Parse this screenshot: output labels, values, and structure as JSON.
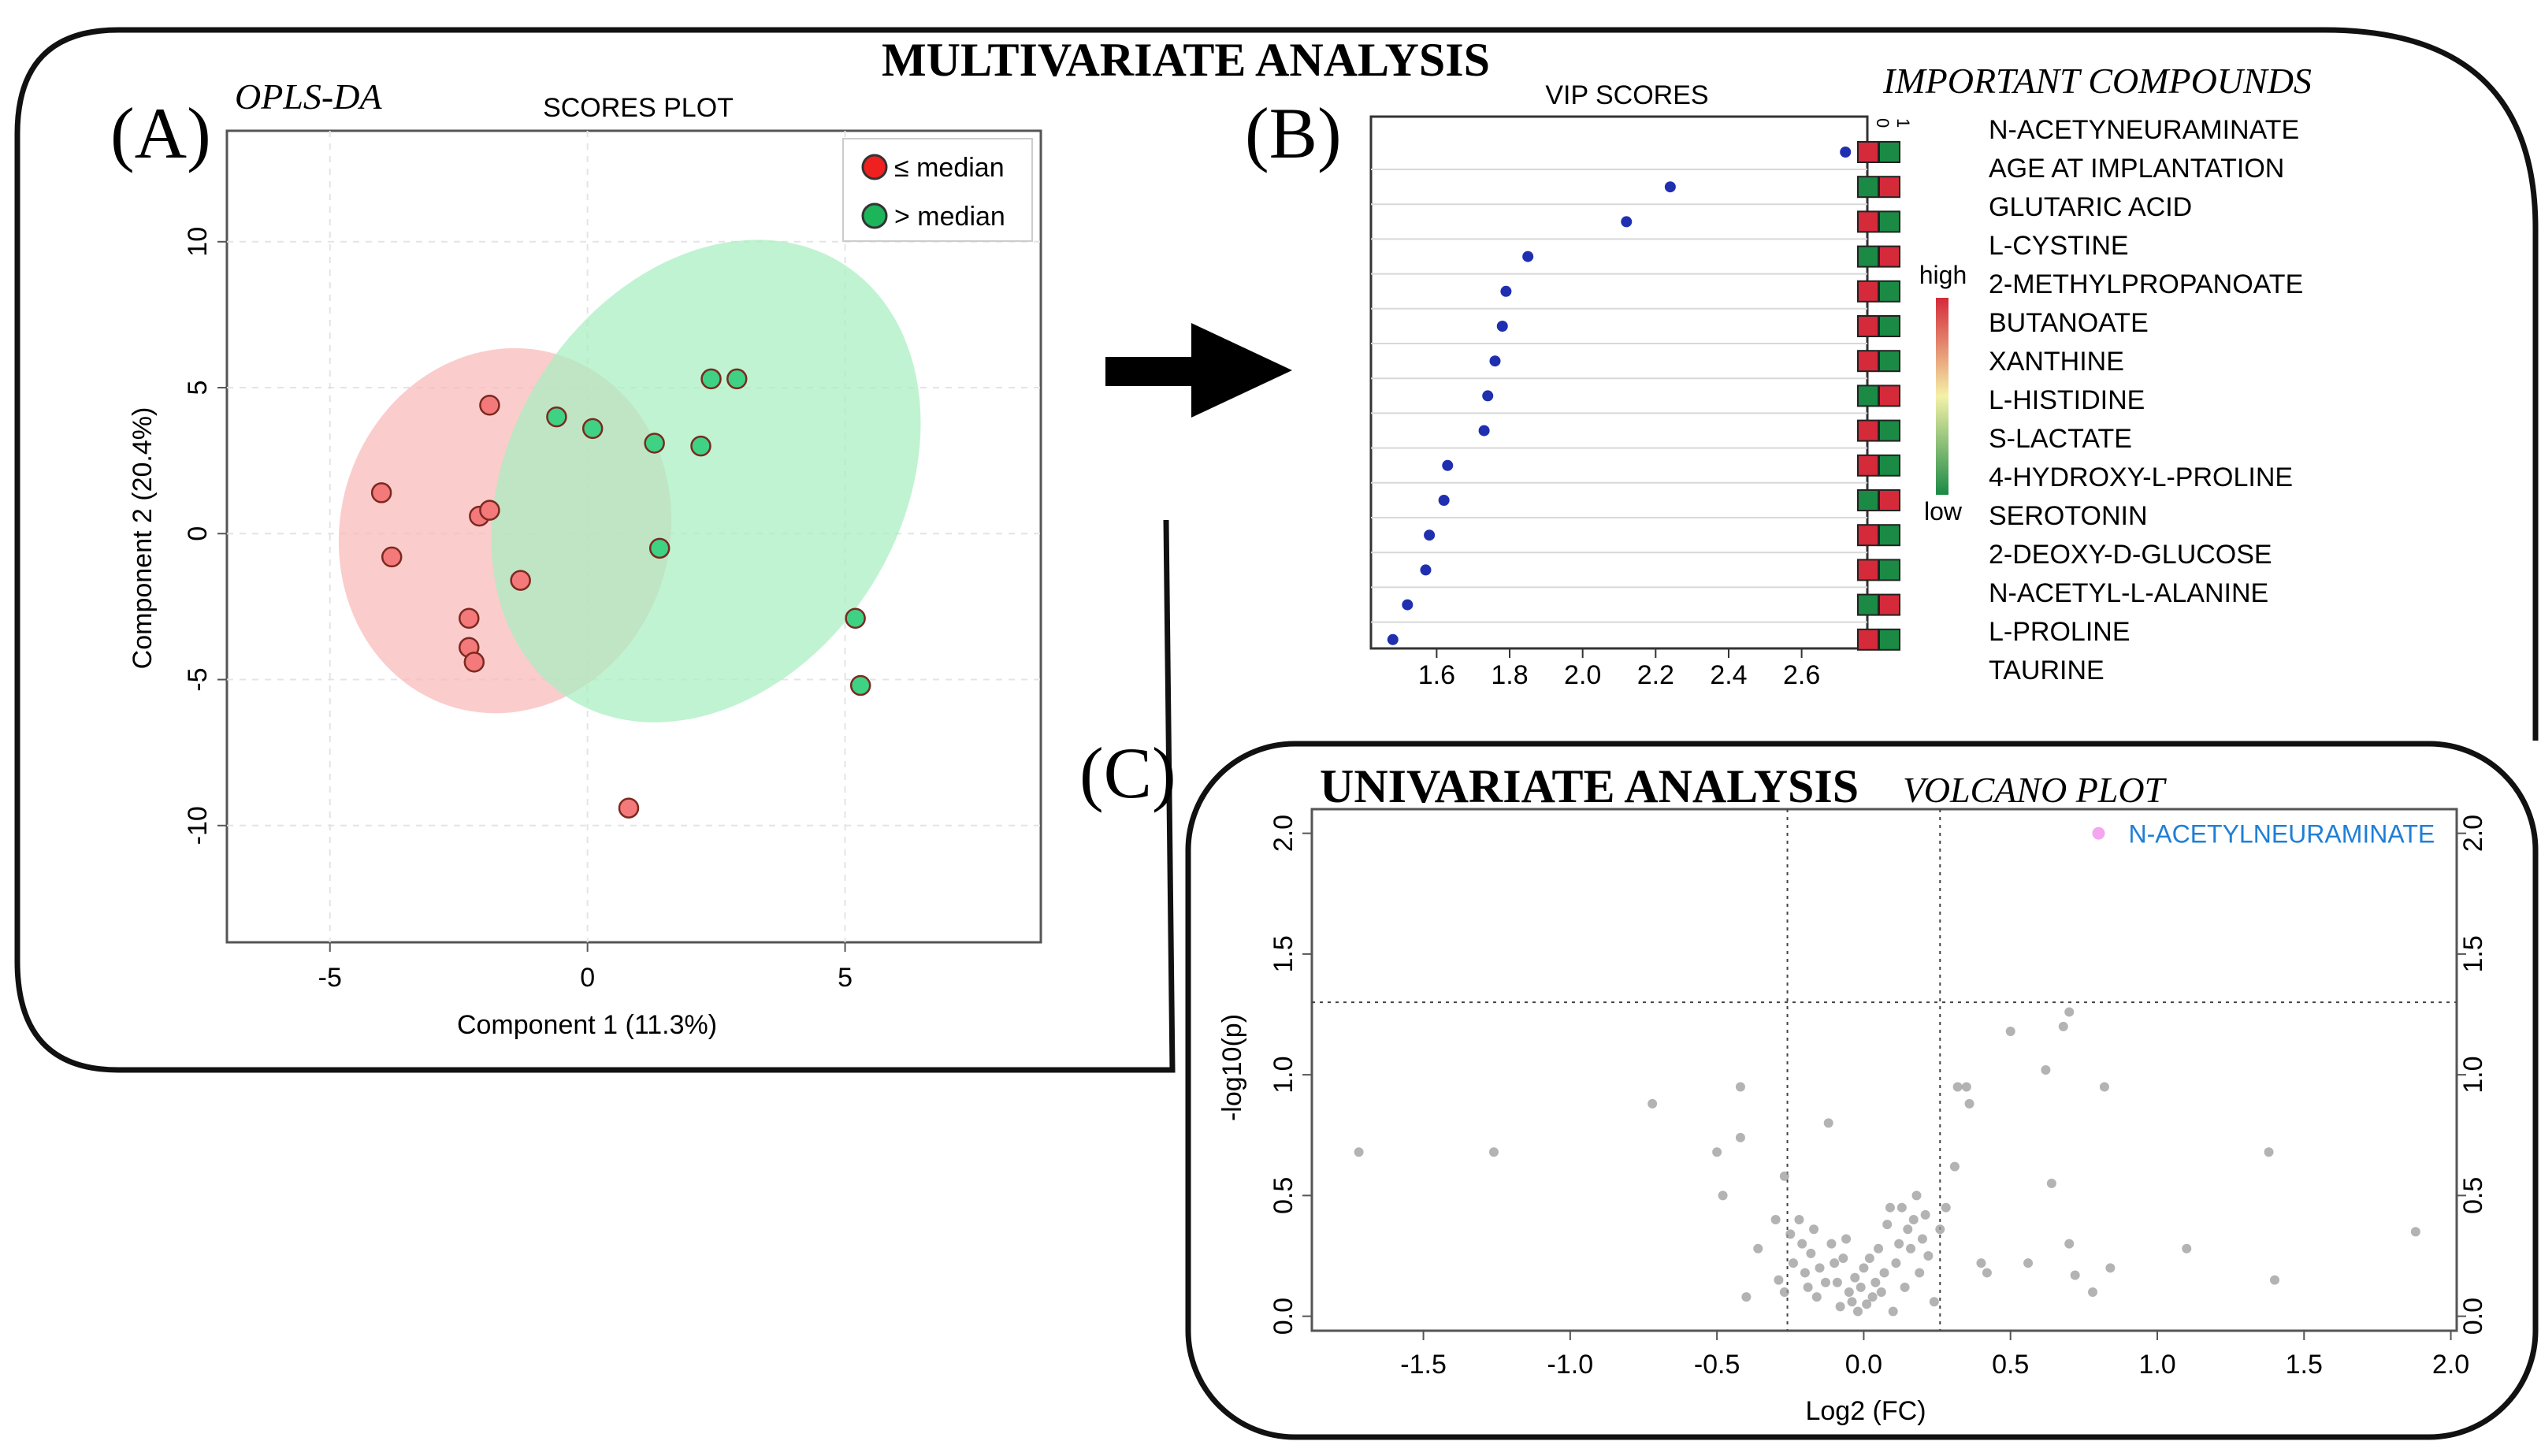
{
  "colors": {
    "red_fill": "#f4797a",
    "red_ellipse": "#f9b9b9",
    "green_fill": "#3fd184",
    "green_ellipse": "#a7efc0",
    "marker_edge": "#7a2a20",
    "vip_dot": "#1f2fb0",
    "heat_red": "#d42a3a",
    "heat_green": "#1a8a45",
    "volcano_dot": "#9a9a9a",
    "highlight_dot": "#f4a6f0",
    "highlight_label": "#1f7fd6",
    "frame": "#111111"
  },
  "headings": {
    "multivariate": "MULTIVARIATE ANALYSIS",
    "univariate": "UNIVARIATE ANALYSIS",
    "volcano": "VOLCANO PLOT",
    "important": "IMPORTANT COMPOUNDS",
    "opls": "OPLS-DA",
    "panel_a": "(A)",
    "panel_b": "(B)",
    "panel_c": "(C)"
  },
  "chart_data": [
    {
      "id": "scores",
      "type": "scatter",
      "title": "SCORES PLOT",
      "xlabel": "Component 1 (11.3%)",
      "ylabel": "Component 2 (20.4%)",
      "xlim": [
        -7,
        8.8
      ],
      "ylim": [
        -14,
        13.8
      ],
      "xticks": [
        -5,
        0,
        5
      ],
      "yticks": [
        -10,
        -5,
        0,
        5,
        10
      ],
      "grid": true,
      "legend": [
        "≤ median",
        "> median"
      ],
      "series": [
        {
          "name": "≤ median",
          "color": "red",
          "ellipse": {
            "cx": -1.6,
            "cy": 0.1,
            "rx": 6.3,
            "ry": 3.2,
            "angle_deg": -74
          },
          "points": [
            [
              -4.0,
              1.4
            ],
            [
              -3.8,
              -0.8
            ],
            [
              -2.3,
              -2.9
            ],
            [
              -2.3,
              -3.9
            ],
            [
              -2.2,
              -4.4
            ],
            [
              -2.1,
              0.6
            ],
            [
              -1.9,
              0.8
            ],
            [
              -1.9,
              4.4
            ],
            [
              -1.3,
              -1.6
            ],
            [
              0.8,
              -9.4
            ]
          ]
        },
        {
          "name": "> median",
          "color": "green",
          "ellipse": {
            "cx": 2.3,
            "cy": 1.8,
            "rx": 8.8,
            "ry": 3.8,
            "angle_deg": -58
          },
          "points": [
            [
              -0.6,
              4.0
            ],
            [
              0.1,
              3.6
            ],
            [
              1.3,
              3.1
            ],
            [
              1.4,
              -0.5
            ],
            [
              2.2,
              3.0
            ],
            [
              2.4,
              5.3
            ],
            [
              2.9,
              5.3
            ],
            [
              5.2,
              -2.9
            ],
            [
              5.3,
              -5.2
            ]
          ]
        }
      ]
    },
    {
      "id": "vip",
      "type": "scatter",
      "title": "VIP SCORES",
      "xlim": [
        1.42,
        2.78
      ],
      "xticks": [
        1.6,
        1.8,
        2.0,
        2.2,
        2.4,
        2.6
      ],
      "tick_labels": [
        "1.6",
        "1.8",
        "2.0",
        "2.2",
        "2.4",
        "2.6"
      ],
      "heat_header": [
        "0",
        "1"
      ],
      "colorbar": {
        "high": "high",
        "low": "low"
      },
      "compounds": [
        "N-ACETYNEURAMINATE",
        "AGE AT IMPLANTATION",
        "GLUTARIC ACID",
        "L-CYSTINE",
        "2-METHYLPROPANOATE",
        "BUTANOATE",
        "XANTHINE",
        "L-HISTIDINE",
        "S-LACTATE",
        "4-HYDROXY-L-PROLINE",
        "SEROTONIN",
        "2-DEOXY-D-GLUCOSE",
        "N-ACETYL-L-ALANINE",
        "L-PROLINE",
        "TAURINE"
      ],
      "values": [
        2.72,
        2.24,
        2.12,
        1.85,
        1.79,
        1.78,
        1.76,
        1.74,
        1.73,
        1.63,
        1.62,
        1.58,
        1.57,
        1.52,
        1.48
      ],
      "heat": [
        [
          "red",
          "green"
        ],
        [
          "green",
          "red"
        ],
        [
          "red",
          "green"
        ],
        [
          "green",
          "red"
        ],
        [
          "red",
          "green"
        ],
        [
          "red",
          "green"
        ],
        [
          "red",
          "green"
        ],
        [
          "green",
          "red"
        ],
        [
          "red",
          "green"
        ],
        [
          "red",
          "green"
        ],
        [
          "green",
          "red"
        ],
        [
          "red",
          "green"
        ],
        [
          "red",
          "green"
        ],
        [
          "green",
          "red"
        ],
        [
          "red",
          "green"
        ]
      ]
    },
    {
      "id": "volcano",
      "type": "scatter",
      "xlabel": "Log2 (FC)",
      "ylabel": "-log10(p)",
      "xlim": [
        -1.88,
        2.02
      ],
      "ylim": [
        -0.06,
        2.1
      ],
      "xticks": [
        -1.5,
        -1.0,
        -0.5,
        0.0,
        0.5,
        1.0,
        1.5,
        2.0
      ],
      "x_tick_labels": [
        "-1.5",
        "-1.0",
        "-0.5",
        "0.0",
        "0.5",
        "1.0",
        "1.5",
        "2.0"
      ],
      "yticks": [
        0.0,
        0.5,
        1.0,
        1.5,
        2.0
      ],
      "y_tick_labels": [
        "0.0",
        "0.5",
        "1.0",
        "1.5",
        "2.0"
      ],
      "thresholds": {
        "x": [
          -0.26,
          0.26
        ],
        "y": 1.3
      },
      "highlight": {
        "label": "N-ACETYLNEURAMINATE",
        "x": 0.8,
        "y": 2.0
      },
      "points": [
        [
          -1.72,
          0.68
        ],
        [
          -1.26,
          0.68
        ],
        [
          -0.72,
          0.88
        ],
        [
          -0.5,
          0.68
        ],
        [
          -0.48,
          0.5
        ],
        [
          -0.42,
          0.74
        ],
        [
          -0.42,
          0.95
        ],
        [
          -0.4,
          0.08
        ],
        [
          -0.36,
          0.28
        ],
        [
          -0.3,
          0.4
        ],
        [
          -0.29,
          0.15
        ],
        [
          -0.27,
          0.1
        ],
        [
          -0.27,
          0.58
        ],
        [
          -0.25,
          0.34
        ],
        [
          -0.24,
          0.22
        ],
        [
          -0.22,
          0.4
        ],
        [
          -0.21,
          0.3
        ],
        [
          -0.2,
          0.18
        ],
        [
          -0.19,
          0.12
        ],
        [
          -0.18,
          0.26
        ],
        [
          -0.17,
          0.36
        ],
        [
          -0.16,
          0.08
        ],
        [
          -0.15,
          0.2
        ],
        [
          -0.13,
          0.14
        ],
        [
          -0.12,
          0.8
        ],
        [
          -0.11,
          0.3
        ],
        [
          -0.1,
          0.22
        ],
        [
          -0.09,
          0.14
        ],
        [
          -0.08,
          0.04
        ],
        [
          -0.07,
          0.24
        ],
        [
          -0.06,
          0.32
        ],
        [
          -0.05,
          0.1
        ],
        [
          -0.04,
          0.06
        ],
        [
          -0.03,
          0.16
        ],
        [
          -0.02,
          0.02
        ],
        [
          -0.01,
          0.12
        ],
        [
          0.0,
          0.2
        ],
        [
          0.01,
          0.05
        ],
        [
          0.02,
          0.24
        ],
        [
          0.03,
          0.08
        ],
        [
          0.04,
          0.14
        ],
        [
          0.05,
          0.28
        ],
        [
          0.06,
          0.1
        ],
        [
          0.07,
          0.18
        ],
        [
          0.08,
          0.38
        ],
        [
          0.09,
          0.45
        ],
        [
          0.1,
          0.02
        ],
        [
          0.11,
          0.22
        ],
        [
          0.12,
          0.3
        ],
        [
          0.13,
          0.45
        ],
        [
          0.14,
          0.12
        ],
        [
          0.15,
          0.36
        ],
        [
          0.16,
          0.28
        ],
        [
          0.17,
          0.4
        ],
        [
          0.18,
          0.5
        ],
        [
          0.19,
          0.18
        ],
        [
          0.2,
          0.32
        ],
        [
          0.21,
          0.42
        ],
        [
          0.22,
          0.25
        ],
        [
          0.24,
          0.06
        ],
        [
          0.26,
          0.36
        ],
        [
          0.28,
          0.45
        ],
        [
          0.31,
          0.62
        ],
        [
          0.32,
          0.95
        ],
        [
          0.35,
          0.95
        ],
        [
          0.36,
          0.88
        ],
        [
          0.4,
          0.22
        ],
        [
          0.42,
          0.18
        ],
        [
          0.5,
          1.18
        ],
        [
          0.56,
          0.22
        ],
        [
          0.62,
          1.02
        ],
        [
          0.64,
          0.55
        ],
        [
          0.68,
          1.2
        ],
        [
          0.7,
          1.26
        ],
        [
          0.7,
          0.3
        ],
        [
          0.72,
          0.17
        ],
        [
          0.78,
          0.1
        ],
        [
          0.82,
          0.95
        ],
        [
          0.84,
          0.2
        ],
        [
          1.1,
          0.28
        ],
        [
          1.38,
          0.68
        ],
        [
          1.4,
          0.15
        ],
        [
          1.88,
          0.35
        ]
      ]
    }
  ]
}
